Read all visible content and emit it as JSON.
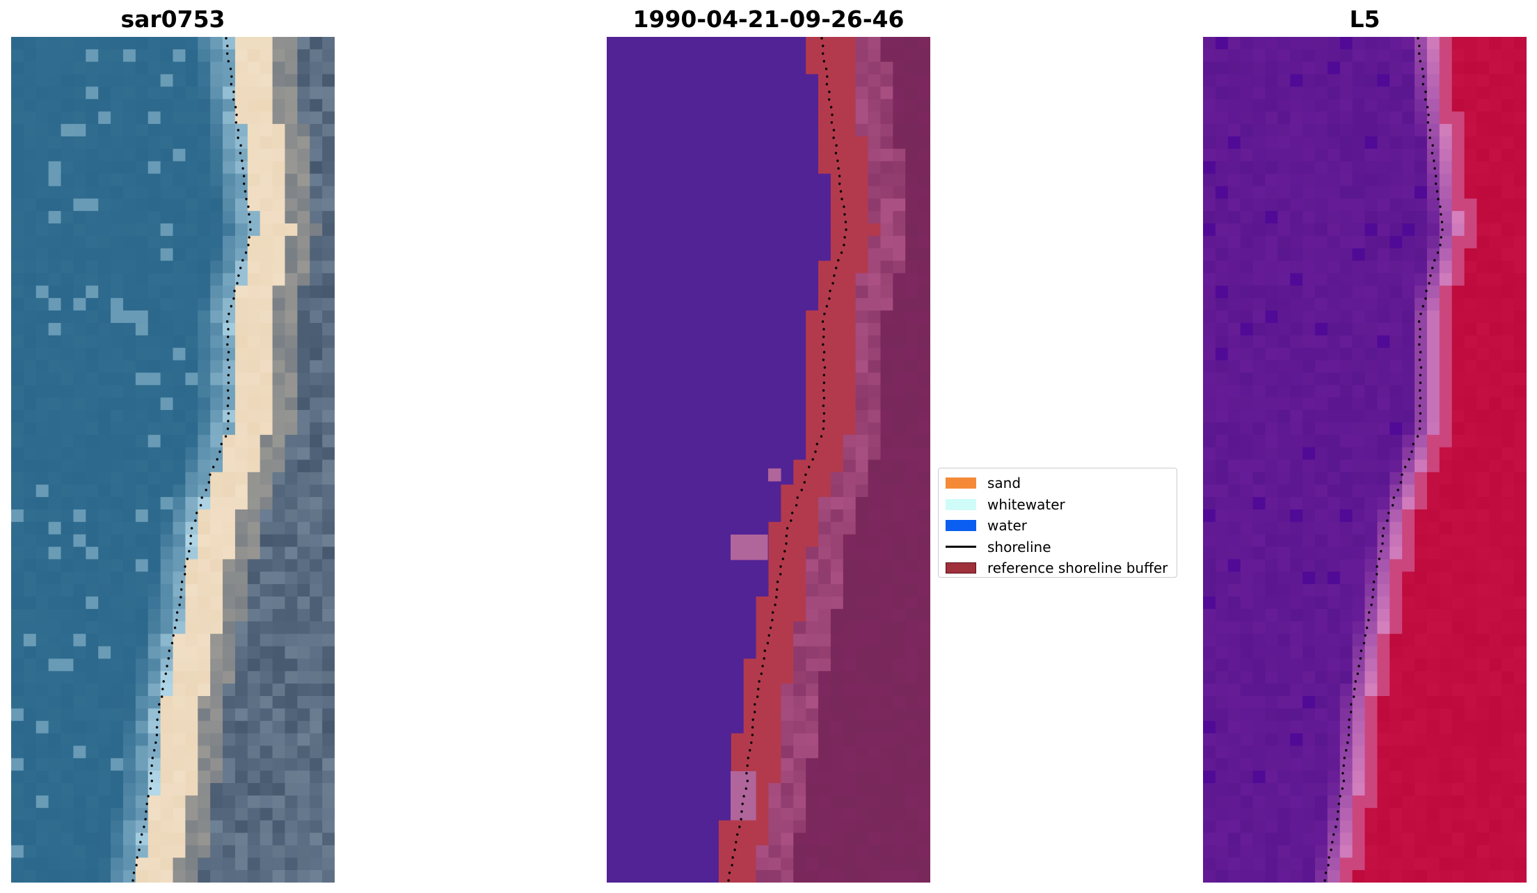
{
  "panels": [
    {
      "title": "sar0753",
      "style": "rgb"
    },
    {
      "title": "1990-04-21-09-26-46",
      "style": "classified"
    },
    {
      "title": "L5",
      "style": "index"
    }
  ],
  "legend": {
    "items": [
      {
        "label": "sand",
        "kind": "patch",
        "color": "#f48a38"
      },
      {
        "label": "whitewater",
        "kind": "patch",
        "color": "#cffcf8"
      },
      {
        "label": "water",
        "kind": "patch",
        "color": "#0a5ef0"
      },
      {
        "label": "shoreline",
        "kind": "line",
        "color": "#000000"
      },
      {
        "label": "reference shoreline buffer",
        "kind": "patch",
        "color": "#a0303c"
      }
    ]
  }
}
